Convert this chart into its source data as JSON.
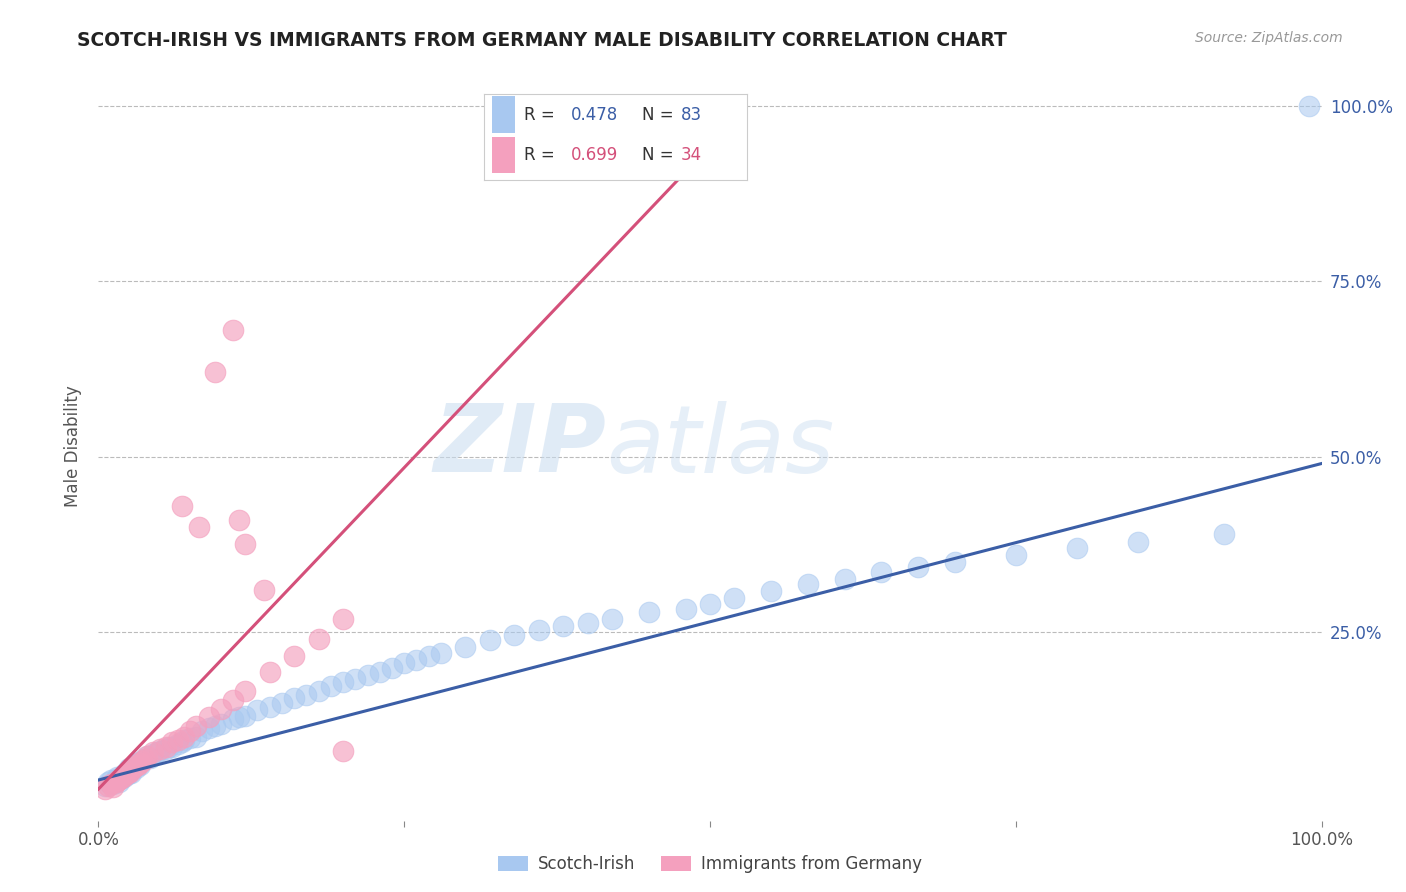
{
  "title": "SCOTCH-IRISH VS IMMIGRANTS FROM GERMANY MALE DISABILITY CORRELATION CHART",
  "source_text": "Source: ZipAtlas.com",
  "ylabel": "Male Disability",
  "xlim": [
    0.0,
    1.0
  ],
  "ylim": [
    -0.02,
    1.05
  ],
  "scotch_irish_color": "#A8C8F0",
  "germany_color": "#F4A0BE",
  "scotch_irish_line_color": "#3B5EA6",
  "germany_line_color": "#D4507A",
  "scotch_irish_R": 0.478,
  "scotch_irish_N": 83,
  "germany_R": 0.699,
  "germany_N": 34,
  "watermark_text": "ZIPatlas",
  "background_color": "#FFFFFF",
  "grid_color": "#BBBBBB",
  "legend_box_color": "#F5F5F5",
  "legend_border_color": "#CCCCCC",
  "scotch_irish_x": [
    0.005,
    0.008,
    0.01,
    0.012,
    0.014,
    0.015,
    0.016,
    0.017,
    0.018,
    0.019,
    0.02,
    0.021,
    0.022,
    0.023,
    0.024,
    0.025,
    0.026,
    0.027,
    0.028,
    0.03,
    0.031,
    0.032,
    0.034,
    0.035,
    0.037,
    0.04,
    0.042,
    0.045,
    0.048,
    0.05,
    0.055,
    0.058,
    0.06,
    0.065,
    0.068,
    0.07,
    0.075,
    0.08,
    0.085,
    0.09,
    0.095,
    0.1,
    0.11,
    0.115,
    0.12,
    0.13,
    0.14,
    0.15,
    0.16,
    0.17,
    0.18,
    0.19,
    0.2,
    0.21,
    0.22,
    0.23,
    0.24,
    0.25,
    0.26,
    0.27,
    0.28,
    0.3,
    0.32,
    0.34,
    0.36,
    0.38,
    0.4,
    0.42,
    0.45,
    0.48,
    0.5,
    0.52,
    0.55,
    0.58,
    0.61,
    0.64,
    0.67,
    0.7,
    0.75,
    0.8,
    0.85,
    0.92,
    0.99
  ],
  "scotch_irish_y": [
    0.03,
    0.035,
    0.038,
    0.032,
    0.04,
    0.042,
    0.038,
    0.035,
    0.04,
    0.043,
    0.045,
    0.042,
    0.048,
    0.05,
    0.046,
    0.055,
    0.052,
    0.048,
    0.055,
    0.058,
    0.055,
    0.062,
    0.06,
    0.065,
    0.068,
    0.072,
    0.07,
    0.075,
    0.078,
    0.08,
    0.082,
    0.085,
    0.085,
    0.09,
    0.092,
    0.095,
    0.098,
    0.1,
    0.108,
    0.112,
    0.115,
    0.118,
    0.125,
    0.128,
    0.13,
    0.138,
    0.142,
    0.148,
    0.155,
    0.16,
    0.165,
    0.172,
    0.178,
    0.182,
    0.188,
    0.192,
    0.198,
    0.205,
    0.21,
    0.215,
    0.22,
    0.228,
    0.238,
    0.245,
    0.252,
    0.258,
    0.262,
    0.268,
    0.278,
    0.282,
    0.29,
    0.298,
    0.308,
    0.318,
    0.325,
    0.335,
    0.342,
    0.35,
    0.36,
    0.37,
    0.378,
    0.39,
    1.0
  ],
  "germany_x": [
    0.005,
    0.008,
    0.01,
    0.012,
    0.014,
    0.016,
    0.018,
    0.02,
    0.022,
    0.024,
    0.026,
    0.028,
    0.03,
    0.032,
    0.034,
    0.036,
    0.038,
    0.04,
    0.045,
    0.05,
    0.055,
    0.06,
    0.065,
    0.07,
    0.075,
    0.08,
    0.09,
    0.1,
    0.11,
    0.12,
    0.14,
    0.16,
    0.18,
    0.2
  ],
  "germany_y": [
    0.025,
    0.03,
    0.032,
    0.028,
    0.035,
    0.038,
    0.04,
    0.042,
    0.045,
    0.048,
    0.05,
    0.055,
    0.058,
    0.06,
    0.062,
    0.065,
    0.068,
    0.072,
    0.078,
    0.082,
    0.085,
    0.092,
    0.095,
    0.1,
    0.108,
    0.115,
    0.128,
    0.14,
    0.152,
    0.165,
    0.192,
    0.215,
    0.24,
    0.268
  ],
  "germany_outliers_x": [
    0.11,
    0.095,
    0.068,
    0.082,
    0.12,
    0.135,
    0.2,
    0.115
  ],
  "germany_outliers_y": [
    0.68,
    0.62,
    0.43,
    0.4,
    0.375,
    0.31,
    0.08,
    0.41
  ],
  "blue_line_x": [
    0.0,
    1.0
  ],
  "blue_line_y": [
    0.038,
    0.49
  ],
  "pink_line_x": [
    0.0,
    0.52
  ],
  "pink_line_y": [
    0.025,
    0.98
  ]
}
